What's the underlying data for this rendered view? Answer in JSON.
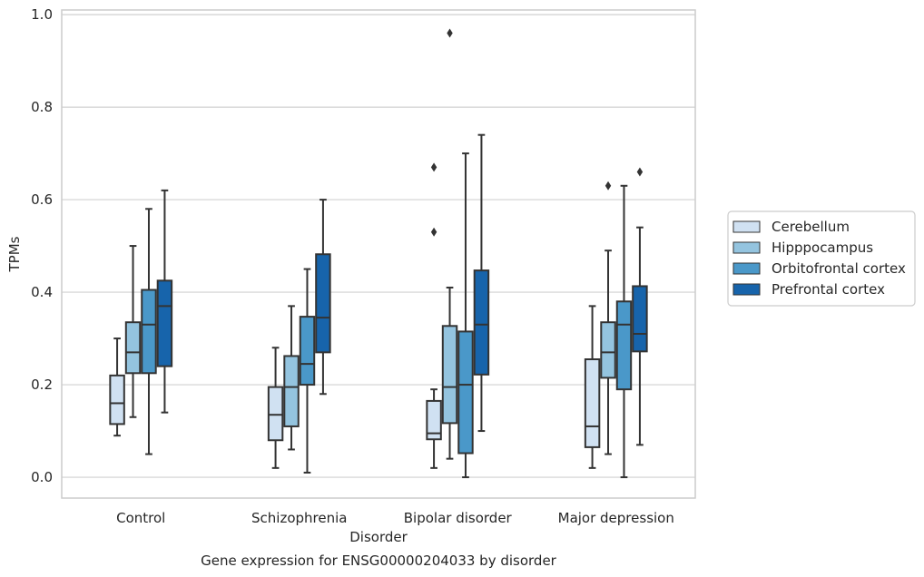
{
  "chart_data": {
    "type": "box",
    "xlabel": "Disorder",
    "ylabel": "TPMs",
    "caption": "Gene expression for ENSG00000204033 by disorder",
    "ylim": [
      -0.045,
      1.01
    ],
    "yticks": [
      "0.0",
      "0.2",
      "0.4",
      "0.6",
      "0.8",
      "1.0"
    ],
    "grid": "horizontal",
    "legend_position": "right",
    "categories": [
      "Control",
      "Schizophrenia",
      "Bipolar disorder",
      "Major depression"
    ],
    "series": [
      {
        "name": "Cerebellum",
        "color": "#d0e1f2",
        "boxes": [
          {
            "whisker_low": 0.09,
            "q1": 0.115,
            "median": 0.16,
            "q3": 0.22,
            "whisker_high": 0.3,
            "outliers": []
          },
          {
            "whisker_low": 0.02,
            "q1": 0.08,
            "median": 0.135,
            "q3": 0.195,
            "whisker_high": 0.28,
            "outliers": []
          },
          {
            "whisker_low": 0.02,
            "q1": 0.082,
            "median": 0.095,
            "q3": 0.165,
            "whisker_high": 0.19,
            "outliers": [
              0.53,
              0.67
            ]
          },
          {
            "whisker_low": 0.02,
            "q1": 0.065,
            "median": 0.11,
            "q3": 0.255,
            "whisker_high": 0.37,
            "outliers": []
          }
        ]
      },
      {
        "name": "Hipppocampus",
        "color": "#94c4df",
        "boxes": [
          {
            "whisker_low": 0.13,
            "q1": 0.225,
            "median": 0.27,
            "q3": 0.335,
            "whisker_high": 0.5,
            "outliers": []
          },
          {
            "whisker_low": 0.06,
            "q1": 0.11,
            "median": 0.195,
            "q3": 0.262,
            "whisker_high": 0.37,
            "outliers": []
          },
          {
            "whisker_low": 0.04,
            "q1": 0.117,
            "median": 0.195,
            "q3": 0.327,
            "whisker_high": 0.41,
            "outliers": [
              0.96
            ]
          },
          {
            "whisker_low": 0.05,
            "q1": 0.215,
            "median": 0.27,
            "q3": 0.335,
            "whisker_high": 0.49,
            "outliers": [
              0.63
            ]
          }
        ]
      },
      {
        "name": "Orbitofrontal cortex",
        "color": "#4a98c9",
        "boxes": [
          {
            "whisker_low": 0.05,
            "q1": 0.225,
            "median": 0.33,
            "q3": 0.405,
            "whisker_high": 0.58,
            "outliers": []
          },
          {
            "whisker_low": 0.01,
            "q1": 0.2,
            "median": 0.245,
            "q3": 0.347,
            "whisker_high": 0.45,
            "outliers": []
          },
          {
            "whisker_low": 0.0,
            "q1": 0.052,
            "median": 0.2,
            "q3": 0.315,
            "whisker_high": 0.7,
            "outliers": []
          },
          {
            "whisker_low": 0.0,
            "q1": 0.19,
            "median": 0.33,
            "q3": 0.38,
            "whisker_high": 0.63,
            "outliers": []
          }
        ]
      },
      {
        "name": "Prefrontal cortex",
        "color": "#1764ab",
        "boxes": [
          {
            "whisker_low": 0.14,
            "q1": 0.24,
            "median": 0.37,
            "q3": 0.425,
            "whisker_high": 0.62,
            "outliers": []
          },
          {
            "whisker_low": 0.18,
            "q1": 0.27,
            "median": 0.345,
            "q3": 0.482,
            "whisker_high": 0.6,
            "outliers": []
          },
          {
            "whisker_low": 0.1,
            "q1": 0.222,
            "median": 0.33,
            "q3": 0.447,
            "whisker_high": 0.74,
            "outliers": []
          },
          {
            "whisker_low": 0.07,
            "q1": 0.272,
            "median": 0.31,
            "q3": 0.413,
            "whisker_high": 0.54,
            "outliers": [
              0.66
            ]
          }
        ]
      }
    ]
  }
}
